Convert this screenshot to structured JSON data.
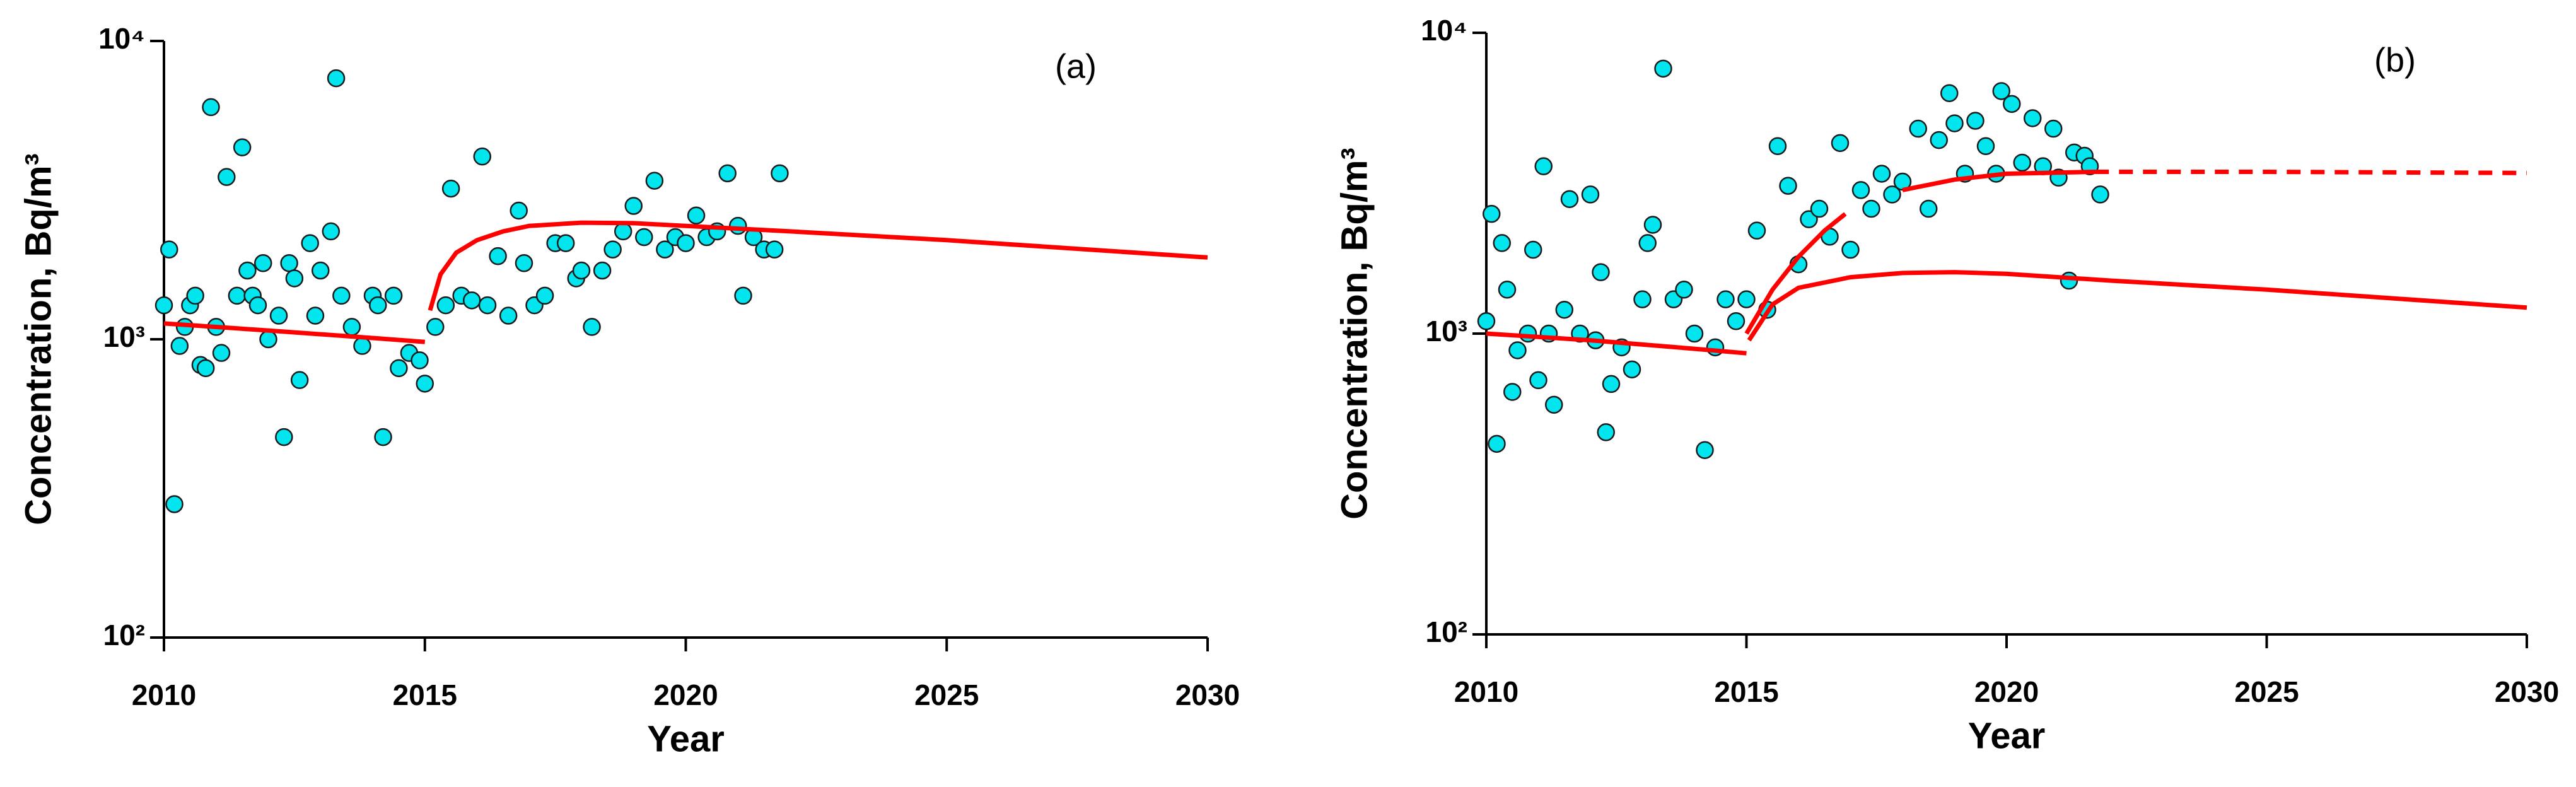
{
  "chart_data": [
    {
      "type": "scatter",
      "annotation": "(a)",
      "xlabel": "Year",
      "ylabel": "Concentration, Bq/m³",
      "xlim": [
        2010,
        2030
      ],
      "xticks": [
        2010,
        2015,
        2020,
        2025,
        2030
      ],
      "ylim": [
        100,
        10000
      ],
      "log_y": true,
      "yticks": [
        {
          "value": 100,
          "label": "10²"
        },
        {
          "value": 1000,
          "label": "10³"
        },
        {
          "value": 10000,
          "label": "10⁴"
        }
      ],
      "series": [
        {
          "type": "scatter",
          "color": "#00e5ee",
          "x": [
            2010.0,
            2010.1,
            2010.2,
            2010.3,
            2010.4,
            2010.5,
            2010.6,
            2010.7,
            2010.8,
            2010.9,
            2011.0,
            2011.1,
            2011.2,
            2011.4,
            2011.5,
            2011.6,
            2011.7,
            2011.8,
            2011.9,
            2012.0,
            2012.2,
            2012.3,
            2012.4,
            2012.5,
            2012.6,
            2012.8,
            2012.9,
            2013.0,
            2013.2,
            2013.3,
            2013.4,
            2013.6,
            2013.8,
            2014.0,
            2014.1,
            2014.2,
            2014.4,
            2014.5,
            2014.7,
            2014.9,
            2015.0,
            2015.2,
            2015.4,
            2015.5,
            2015.7,
            2015.9,
            2016.1,
            2016.2,
            2016.4,
            2016.6,
            2016.8,
            2016.9,
            2017.1,
            2017.3,
            2017.5,
            2017.7,
            2017.9,
            2018.0,
            2018.2,
            2018.4,
            2018.6,
            2018.8,
            2019.0,
            2019.2,
            2019.4,
            2019.6,
            2019.8,
            2020.0,
            2020.2,
            2020.4,
            2020.6,
            2020.8,
            2021.0,
            2021.1,
            2021.3,
            2021.5,
            2021.7,
            2021.8
          ],
          "values": [
            1300,
            2000,
            280,
            950,
            1100,
            1300,
            1400,
            820,
            800,
            6000,
            1100,
            900,
            3500,
            1400,
            4400,
            1700,
            1400,
            1300,
            1800,
            1000,
            1200,
            470,
            1800,
            1600,
            730,
            2100,
            1200,
            1700,
            2300,
            7500,
            1400,
            1100,
            950,
            1400,
            1300,
            470,
            1400,
            800,
            900,
            850,
            710,
            1100,
            1300,
            3200,
            1400,
            1350,
            4100,
            1300,
            1900,
            1200,
            2700,
            1800,
            1300,
            1400,
            2100,
            2100,
            1600,
            1700,
            1100,
            1700,
            2000,
            2300,
            2800,
            2200,
            3400,
            2000,
            2200,
            2100,
            2600,
            2200,
            2300,
            3600,
            2400,
            1400,
            2200,
            2000,
            2000,
            3600
          ]
        },
        {
          "type": "line",
          "color": "#ff0000",
          "style": "solid",
          "x": [
            2010,
            2012,
            2014,
            2015,
            2015.05,
            2015.1,
            2015.3,
            2015.6,
            2016,
            2016.5,
            2017,
            2018,
            2019,
            2020,
            2022,
            2025,
            2030
          ],
          "values": [
            1130,
            1070,
            1010,
            980,
            null,
            1250,
            1650,
            1950,
            2150,
            2300,
            2400,
            2460,
            2450,
            2400,
            2300,
            2150,
            1880
          ]
        }
      ]
    },
    {
      "type": "scatter",
      "annotation": "(b)",
      "xlabel": "Year",
      "ylabel": "Concentration, Bq/m³",
      "xlim": [
        2010,
        2030
      ],
      "xticks": [
        2010,
        2015,
        2020,
        2025,
        2030
      ],
      "ylim": [
        100,
        10000
      ],
      "log_y": true,
      "yticks": [
        {
          "value": 100,
          "label": "10²"
        },
        {
          "value": 1000,
          "label": "10³"
        },
        {
          "value": 10000,
          "label": "10⁴"
        }
      ],
      "series": [
        {
          "type": "scatter",
          "color": "#00e5ee",
          "x": [
            2010.0,
            2010.1,
            2010.2,
            2010.3,
            2010.4,
            2010.5,
            2010.6,
            2010.8,
            2010.9,
            2011.0,
            2011.1,
            2011.2,
            2011.3,
            2011.5,
            2011.6,
            2011.8,
            2012.0,
            2012.1,
            2012.2,
            2012.3,
            2012.4,
            2012.6,
            2012.8,
            2013.0,
            2013.1,
            2013.2,
            2013.4,
            2013.6,
            2013.8,
            2014.0,
            2014.2,
            2014.4,
            2014.6,
            2014.8,
            2015.0,
            2015.2,
            2015.4,
            2015.6,
            2015.8,
            2016.0,
            2016.2,
            2016.4,
            2016.6,
            2016.8,
            2017.0,
            2017.2,
            2017.4,
            2017.6,
            2017.8,
            2018.0,
            2018.3,
            2018.5,
            2018.7,
            2018.9,
            2019.0,
            2019.2,
            2019.4,
            2019.6,
            2019.8,
            2019.9,
            2020.1,
            2020.3,
            2020.5,
            2020.7,
            2020.9,
            2021.0,
            2021.2,
            2021.3,
            2021.5,
            2021.6,
            2021.8
          ],
          "values": [
            1100,
            2500,
            430,
            2000,
            1400,
            640,
            880,
            1000,
            1900,
            700,
            3600,
            1000,
            580,
            1200,
            2800,
            1000,
            2900,
            950,
            1600,
            470,
            680,
            900,
            760,
            1300,
            2000,
            2300,
            7600,
            1300,
            1400,
            1000,
            410,
            900,
            1300,
            1100,
            1300,
            2200,
            1200,
            4200,
            3100,
            1700,
            2400,
            2600,
            2100,
            4300,
            1900,
            3000,
            2600,
            3400,
            2900,
            3200,
            4800,
            2600,
            4400,
            6300,
            5000,
            3400,
            5100,
            4200,
            3400,
            6400,
            5800,
            3700,
            5200,
            3600,
            4800,
            3300,
            1500,
            4000,
            3900,
            3600,
            2900
          ]
        },
        {
          "type": "line",
          "color": "#ff0000",
          "style": "solid",
          "x": [
            2010,
            2012,
            2014,
            2015,
            2015.02,
            2015.05,
            2015.5,
            2016,
            2017,
            2018,
            2019,
            2020,
            2022,
            2025,
            2030
          ],
          "values": [
            1000,
            950,
            890,
            860,
            null,
            950,
            1250,
            1420,
            1540,
            1590,
            1600,
            1580,
            1500,
            1400,
            1220
          ]
        },
        {
          "type": "line",
          "color": "#ff0000",
          "style": "solid",
          "x": [
            2015,
            2015.5,
            2016,
            2016.5,
            2016.9,
            2017.5,
            2018,
            2019,
            2020,
            2021.7
          ],
          "values": [
            1000,
            1400,
            1800,
            2200,
            2500,
            null,
            3000,
            3250,
            3400,
            3450
          ]
        },
        {
          "type": "line",
          "color": "#ff0000",
          "style": "dashed",
          "x": [
            2021.7,
            2025,
            2030
          ],
          "values": [
            3450,
            3450,
            3420
          ]
        }
      ]
    }
  ]
}
